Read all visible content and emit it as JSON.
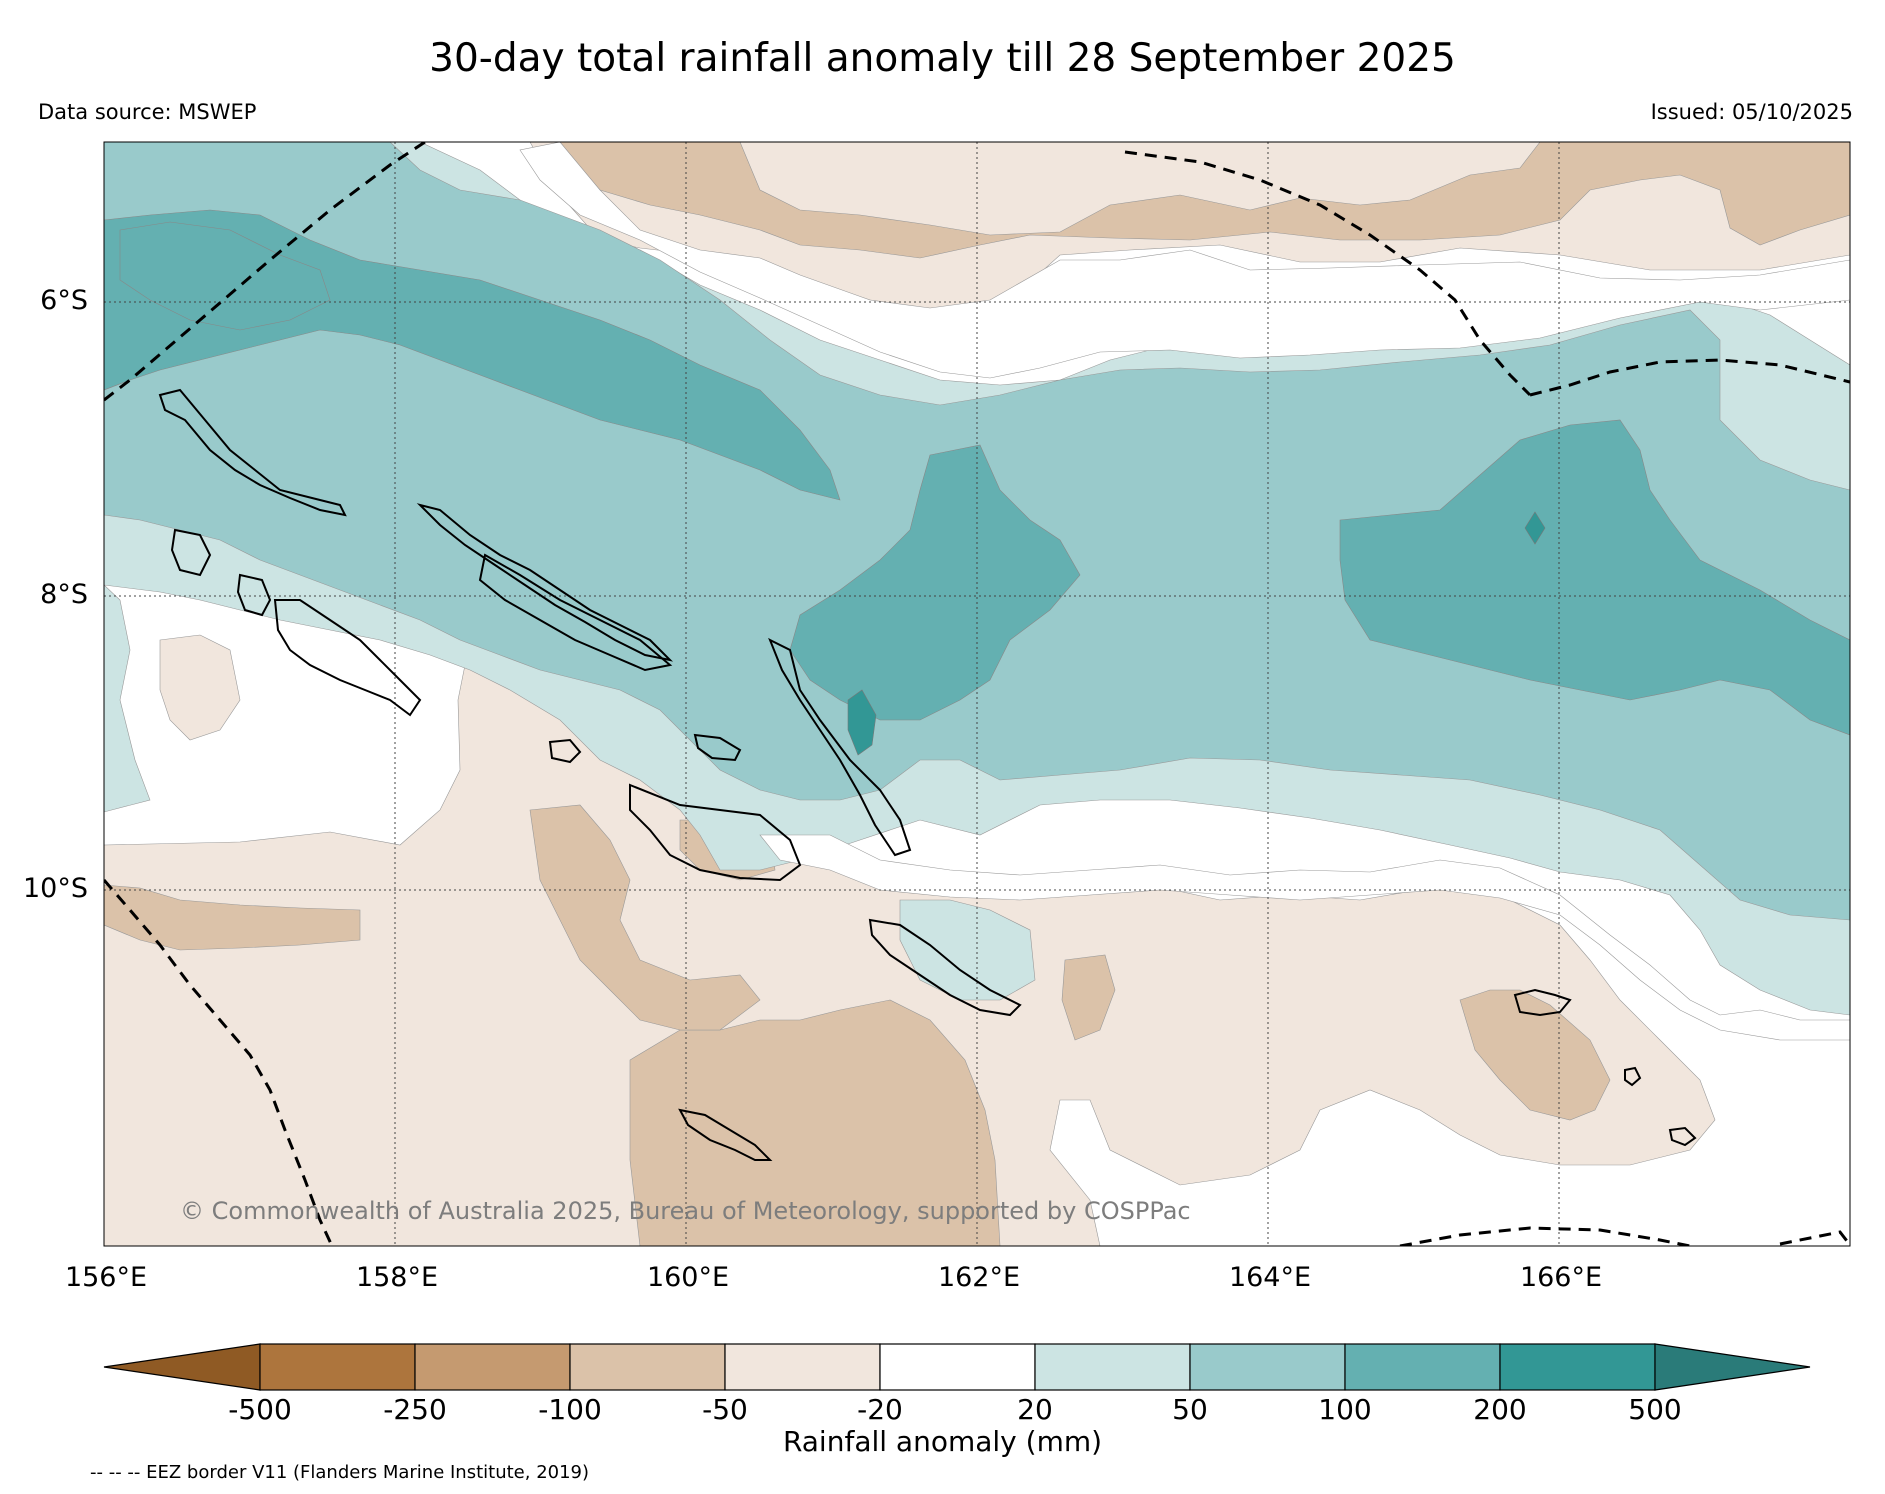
{
  "header": {
    "title": "30-day total rainfall anomaly till 28 September 2025",
    "data_source": "Data source: MSWEP",
    "issued": "Issued: 05/10/2025"
  },
  "map": {
    "lat_labels": [
      "6°S",
      "8°S",
      "10°S"
    ],
    "lon_labels": [
      "156°E",
      "158°E",
      "160°E",
      "162°E",
      "164°E",
      "166°E"
    ],
    "copyright": "© Commonwealth of Australia 2025, Bureau of Meteorology, supported by COSPPac"
  },
  "colorbar": {
    "ticks": [
      "-500",
      "-250",
      "-100",
      "-50",
      "-20",
      "20",
      "50",
      "100",
      "200",
      "500"
    ],
    "label": "Rainfall anomaly (mm)",
    "colors": [
      "#8f5a24",
      "#ad753d",
      "#c59a70",
      "#dbc2a9",
      "#f1e6dd",
      "#ffffff",
      "#cce4e3",
      "#99cacb",
      "#64b0b1",
      "#329795",
      "#2a7b79"
    ]
  },
  "footer": {
    "eez_note": "-- -- -- EEZ border V11 (Flanders Marine Institute, 2019)"
  }
}
